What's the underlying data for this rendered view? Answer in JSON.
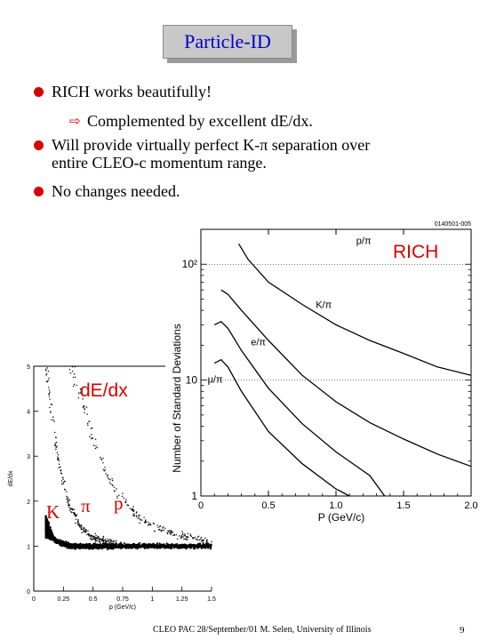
{
  "title": "Particle-ID",
  "bullets": [
    {
      "text": "RICH works beautifully!",
      "sub": "Complemented by excellent dE/dx."
    },
    {
      "text_lines": [
        "Will provide virtually perfect K-π separation over",
        "entire CLEO-c momentum range."
      ]
    },
    {
      "text": "No changes needed."
    }
  ],
  "chart_data": [
    {
      "type": "line",
      "panel_label": "RICH",
      "figure_id": "0140501-005",
      "xlabel": "P (GeV/c)",
      "ylabel": "Number of Standard Deviations",
      "xlim": [
        0,
        2.0
      ],
      "ylim": [
        1,
        200
      ],
      "yscale": "log",
      "x_ticks": [
        "0",
        "0.5",
        "1.0",
        "1.5",
        "2.0"
      ],
      "y_ticks": [
        "1",
        "10",
        "10²"
      ],
      "grid": "horizontal dotted at 10 and 100",
      "series": [
        {
          "name": "p/π",
          "x": [
            0.28,
            0.35,
            0.5,
            0.75,
            1.0,
            1.25,
            1.5,
            1.75,
            2.0
          ],
          "y": [
            150,
            110,
            70,
            45,
            30,
            22,
            17,
            13,
            11
          ]
        },
        {
          "name": "K/π",
          "x": [
            0.15,
            0.2,
            0.3,
            0.5,
            0.75,
            1.0,
            1.25,
            1.5,
            1.75,
            2.0
          ],
          "y": [
            60,
            55,
            40,
            22,
            11,
            6.5,
            4.3,
            3.1,
            2.3,
            1.8
          ]
        },
        {
          "name": "e/π",
          "x": [
            0.1,
            0.15,
            0.2,
            0.3,
            0.5,
            0.75,
            1.0,
            1.25,
            1.36
          ],
          "y": [
            30,
            32,
            28,
            18,
            8.5,
            4.2,
            2.4,
            1.5,
            1.0
          ]
        },
        {
          "name": "μ/π",
          "x": [
            0.1,
            0.15,
            0.2,
            0.3,
            0.5,
            0.75,
            1.0,
            1.1
          ],
          "y": [
            14,
            15,
            13,
            8,
            3.6,
            1.9,
            1.15,
            1.0
          ]
        }
      ]
    },
    {
      "type": "scatter",
      "panel_label": "dE/dx",
      "xlabel": "p (GeV/c)",
      "ylabel": "dE/dx",
      "xlim": [
        0,
        1.5
      ],
      "ylim": [
        0,
        5
      ],
      "x_ticks": [
        "0",
        "0.25",
        "0.5",
        "0.75",
        "1",
        "1.25",
        "1.5"
      ],
      "y_ticks": [
        "0",
        "1",
        "2",
        "3",
        "4",
        "5"
      ],
      "bands": [
        {
          "name": "π",
          "min_value": 1.0
        },
        {
          "name": "K",
          "x": [
            0.1,
            0.15,
            0.2,
            0.3,
            0.4,
            0.5,
            0.6,
            0.7
          ],
          "y": [
            5.0,
            4.0,
            3.0,
            1.9,
            1.4,
            1.2,
            1.1,
            1.05
          ]
        },
        {
          "name": "p",
          "x": [
            0.3,
            0.4,
            0.5,
            0.6,
            0.7,
            0.8,
            0.9,
            1.0,
            1.2,
            1.5
          ],
          "y": [
            5.0,
            4.4,
            3.4,
            2.7,
            2.2,
            1.9,
            1.6,
            1.45,
            1.25,
            1.1
          ]
        }
      ],
      "markers": [
        "K",
        "π",
        "p"
      ]
    }
  ],
  "footer": "CLEO PAC 28/September/01  M. Selen, University of Illinois",
  "page_number": "9"
}
